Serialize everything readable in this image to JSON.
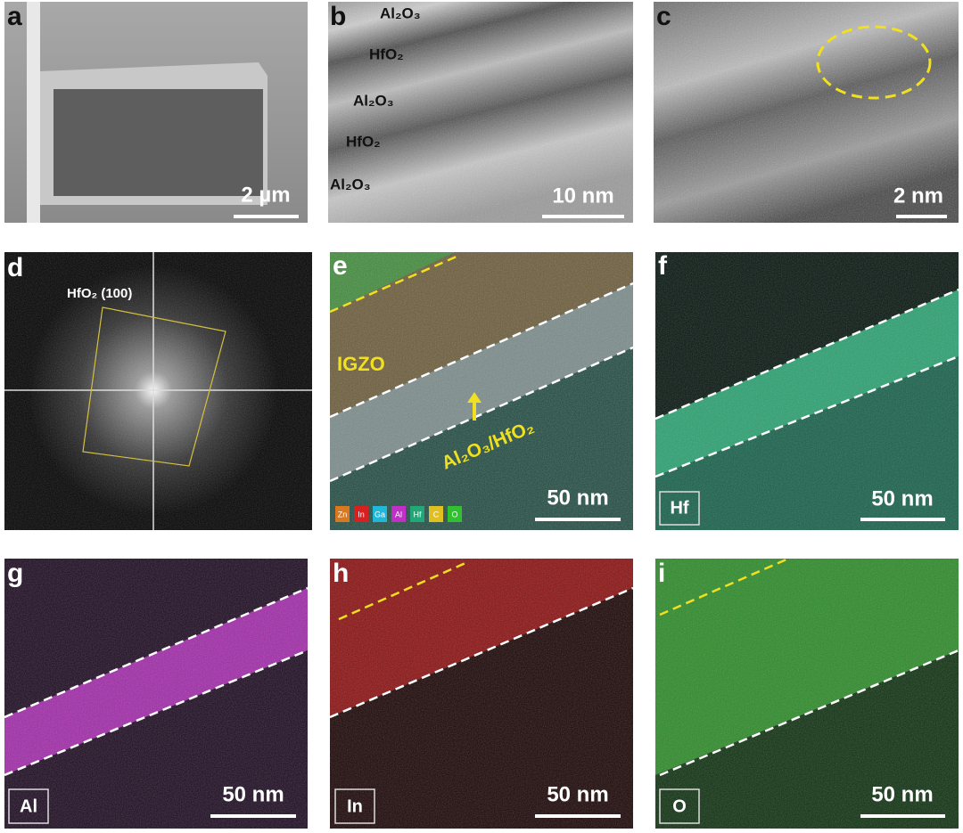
{
  "panels": [
    {
      "letter": "a",
      "scale_bar": "2 µm"
    },
    {
      "letter": "b",
      "scale_bar": "10 nm",
      "layer_labels": [
        "Al₂O₃",
        "HfO₂",
        "Al₂O₃",
        "HfO₂",
        "Al₂O₃"
      ]
    },
    {
      "letter": "c",
      "scale_bar": "2 nm"
    },
    {
      "letter": "d",
      "annotation": "HfO₂ (100)"
    },
    {
      "letter": "e",
      "scale_bar": "50 nm",
      "annotations": [
        "IGZO",
        "Al₂O₃/HfO₂"
      ],
      "legend": [
        "Zn",
        "In",
        "Ga",
        "Al",
        "Hf",
        "C",
        "O"
      ]
    },
    {
      "letter": "f",
      "scale_bar": "50 nm",
      "element": "Hf"
    },
    {
      "letter": "g",
      "scale_bar": "50 nm",
      "element": "Al"
    },
    {
      "letter": "h",
      "scale_bar": "50 nm",
      "element": "In"
    },
    {
      "letter": "i",
      "scale_bar": "50 nm",
      "element": "O"
    }
  ]
}
